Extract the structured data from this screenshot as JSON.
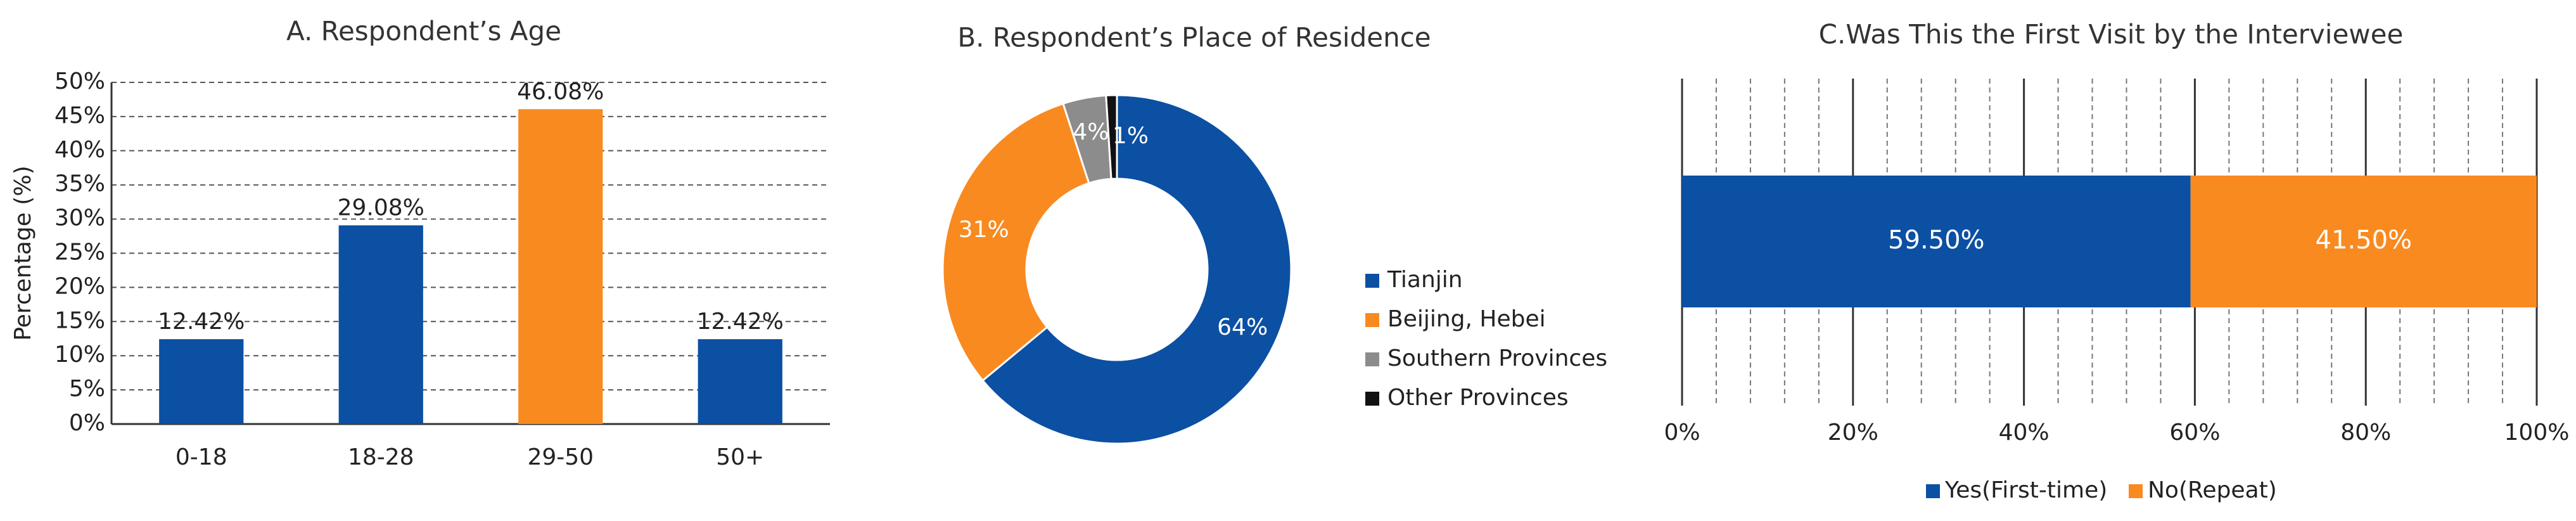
{
  "chart_data": [
    {
      "type": "bar",
      "title": "A. Respondent’s Age",
      "y_label": "Percentage (%)",
      "categories": [
        "0-18",
        "18-28",
        "29-50",
        "50+"
      ],
      "values": [
        12.42,
        29.08,
        46.08,
        12.42
      ],
      "value_labels": [
        "12.42%",
        "29.08%",
        "46.08%",
        "12.42%"
      ],
      "colors": [
        "#0b50a3",
        "#0b50a3",
        "#f98a20",
        "#0b50a3"
      ],
      "ylim": [
        0,
        50
      ],
      "yticks": [
        {
          "value": 0,
          "label": "0%"
        },
        {
          "value": 5,
          "label": "5%"
        },
        {
          "value": 10,
          "label": "10%"
        },
        {
          "value": 15,
          "label": "15%"
        },
        {
          "value": 20,
          "label": "20%"
        },
        {
          "value": 25,
          "label": "25%"
        },
        {
          "value": 30,
          "label": "30%"
        },
        {
          "value": 35,
          "label": "35%"
        },
        {
          "value": 40,
          "label": "40%"
        },
        {
          "value": 45,
          "label": "45%"
        },
        {
          "value": 50,
          "label": "50%"
        }
      ],
      "grid": true
    },
    {
      "type": "pie",
      "title": "B. Respondent’s Place of Residence",
      "categories": [
        "Tianjin",
        "Beijing, Hebei",
        "Southern Provinces",
        "Other Provinces"
      ],
      "values": [
        64,
        31,
        4,
        1
      ],
      "value_labels": [
        "64%",
        "31%",
        "4%",
        "1%"
      ],
      "colors": [
        "#0b50a3",
        "#f98a20",
        "#8c8c8c",
        "#111111"
      ],
      "donut": true,
      "legend": "right"
    },
    {
      "type": "stacked-barh",
      "title": "C.Was This the First Visit by the Interviewee",
      "series": [
        {
          "name": "Yes(First-time)",
          "color": "#0b50a3",
          "values": [
            59.5
          ],
          "value_labels": [
            "59.50%"
          ]
        },
        {
          "name": "No(Repeat)",
          "color": "#f98a20",
          "values": [
            41.5
          ],
          "value_labels": [
            "41.50%"
          ]
        }
      ],
      "xlim": [
        0,
        100
      ],
      "xticks": [
        {
          "value": 0,
          "label": "0%"
        },
        {
          "value": 20,
          "label": "20%"
        },
        {
          "value": 40,
          "label": "40%"
        },
        {
          "value": 60,
          "label": "60%"
        },
        {
          "value": 80,
          "label": "80%"
        },
        {
          "value": 100,
          "label": "100%"
        }
      ],
      "grid": true,
      "legend": "bottom"
    }
  ]
}
